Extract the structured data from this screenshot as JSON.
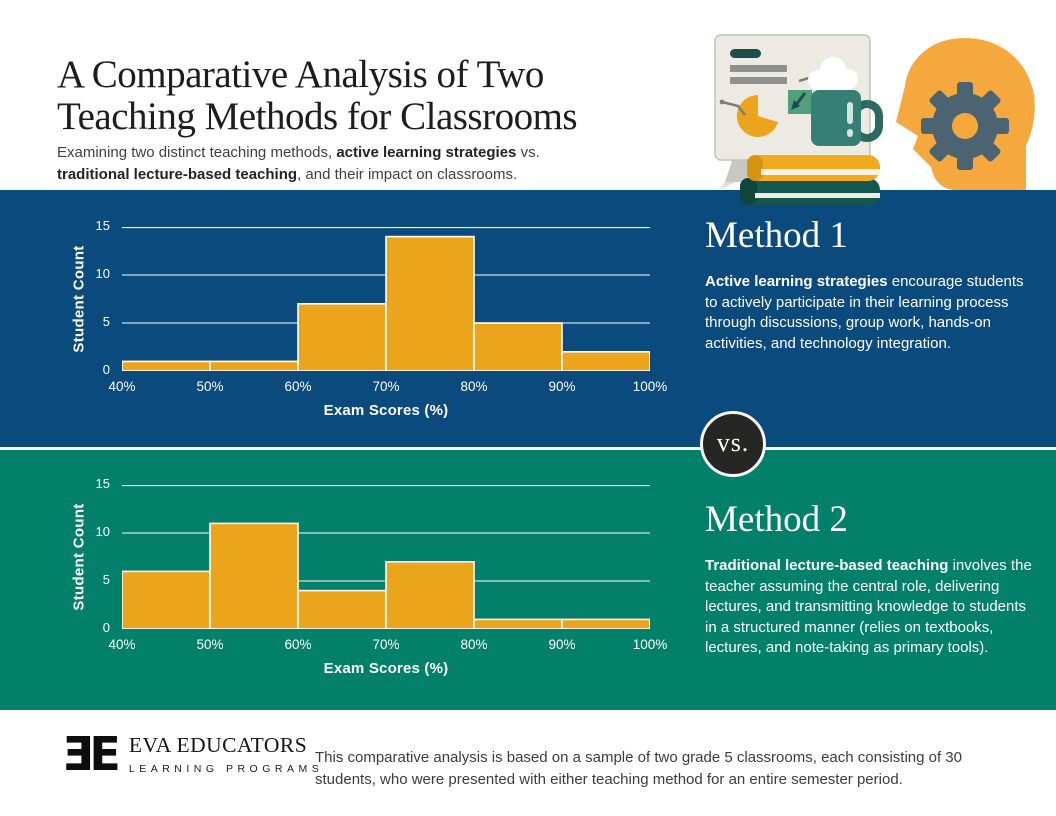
{
  "header": {
    "title_line1": "A Comparative Analysis of Two",
    "title_line2": "Teaching Methods for Classrooms",
    "subtitle": {
      "part1": "Examining two distinct teaching methods, ",
      "bold1": "active learning strategies",
      "part2": " vs. ",
      "bold2": "traditional lecture-based teaching",
      "part3": ", and their impact on classrooms."
    }
  },
  "illustration": {
    "icons": [
      "presentation-board-icon",
      "coffee-mug-icon",
      "books-icon",
      "head-gear-icon"
    ]
  },
  "method1": {
    "heading": "Method 1",
    "bold": "Active learning strategies",
    "text": " encourage students to actively participate in their learning process through discussions, group work, hands-on activities, and technology integration."
  },
  "vs_label": "vs.",
  "method2": {
    "heading": "Method 2",
    "bold": "Traditional lecture-based teaching",
    "text": " involves the teacher assuming the central role, delivering lectures, and transmitting knowledge to students in a structured manner (relies on textbooks, lectures, and note-taking as primary tools)."
  },
  "footer": {
    "logo_mark": "ƎE",
    "logo_name": "EVA EDUCATORS",
    "logo_tagline": "LEARNING PROGRAMS",
    "note": "This comparative analysis is based on a sample of two grade 5 classrooms, each consisting of 30 students, who were presented with either teaching method for an entire semester period."
  },
  "colors": {
    "blue_section": "#0A4A7D",
    "green_section": "#02806A",
    "bar_fill": "#EAA51D",
    "bar_edge": "#FFFFFF",
    "head_orange": "#F5A83E",
    "gear_slate": "#4C6472",
    "vs_circle": "#262624"
  },
  "chart_data": [
    {
      "type": "bar",
      "subtype": "histogram",
      "section": "Method 1 — active learning strategies",
      "bin_edges": [
        40,
        50,
        60,
        70,
        80,
        90,
        100
      ],
      "bin_labels": [
        "40%",
        "50%",
        "60%",
        "70%",
        "80%",
        "90%",
        "100%"
      ],
      "counts": [
        1,
        1,
        7,
        14,
        5,
        2
      ],
      "xlabel": "Exam Scores (%)",
      "ylabel": "Student Count",
      "yticks": [
        0,
        5,
        10,
        15
      ],
      "ylim": [
        0,
        15
      ],
      "grid": "horizontal-white",
      "bar_color": "#EAA51D",
      "bar_edge_color": "#FFFFFF",
      "background": "#0A4A7D"
    },
    {
      "type": "bar",
      "subtype": "histogram",
      "section": "Method 2 — traditional lecture-based teaching",
      "bin_edges": [
        40,
        50,
        60,
        70,
        80,
        90,
        100
      ],
      "bin_labels": [
        "40%",
        "50%",
        "60%",
        "70%",
        "80%",
        "90%",
        "100%"
      ],
      "counts": [
        6,
        11,
        4,
        7,
        1,
        1
      ],
      "xlabel": "Exam Scores (%)",
      "ylabel": "Student Count",
      "yticks": [
        0,
        5,
        10,
        15
      ],
      "ylim": [
        0,
        15
      ],
      "grid": "horizontal-white",
      "bar_color": "#EAA51D",
      "bar_edge_color": "#FFFFFF",
      "background": "#02806A"
    }
  ]
}
